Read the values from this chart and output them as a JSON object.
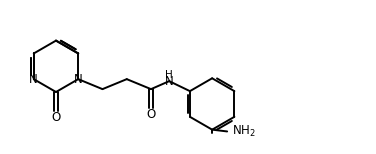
{
  "bg_color": "#ffffff",
  "line_color": "#000000",
  "text_color": "#000000",
  "line_width": 1.4,
  "font_size": 8.5,
  "figsize": [
    3.76,
    1.54
  ],
  "dpi": 100,
  "xlim": [
    0,
    10.5
  ],
  "ylim": [
    0,
    4.1
  ]
}
